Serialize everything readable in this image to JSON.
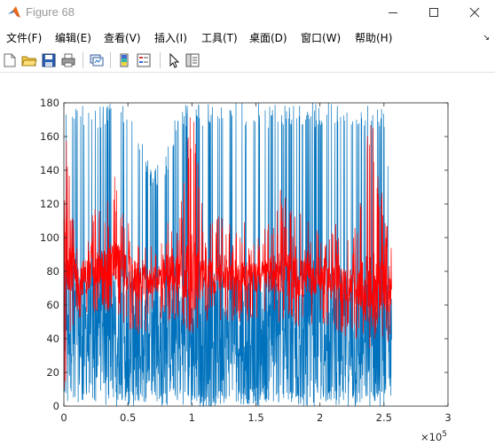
{
  "window": {
    "title": "Figure 68",
    "icons": {
      "app": "matlab-logo-icon",
      "minimize": "minimize-icon",
      "maximize": "maximize-icon",
      "close": "close-icon"
    }
  },
  "menu": {
    "items": [
      "文件(F)",
      "编辑(E)",
      "查看(V)",
      "插入(I)",
      "工具(T)",
      "桌面(D)",
      "窗口(W)",
      "帮助(H)"
    ],
    "overflow_icon": "chevron-right-icon"
  },
  "toolbar": {
    "buttons": [
      "new-figure-icon",
      "open-file-icon",
      "save-icon",
      "print-icon",
      "link-plot-icon",
      "insert-colorbar-icon",
      "insert-legend-icon",
      "edit-plot-icon",
      "property-inspector-icon"
    ]
  },
  "chart_data": {
    "type": "line",
    "title": "",
    "xlabel": "",
    "ylabel": "",
    "xlim": [
      0,
      300000
    ],
    "ylim": [
      0,
      180
    ],
    "x_ticks": [
      "0",
      "0.5",
      "1",
      "1.5",
      "2",
      "2.5",
      "3"
    ],
    "x_exponent_label": "×10",
    "x_exponent": "5",
    "y_ticks": [
      "0",
      "20",
      "40",
      "60",
      "80",
      "100",
      "120",
      "140",
      "160",
      "180"
    ],
    "x_data_end": 256000,
    "grid": false,
    "legend": "none",
    "series": [
      {
        "color": "#0072BD",
        "envelope_x": [
          0,
          5000,
          10000,
          20000,
          30000,
          40000,
          50000,
          60000,
          70000,
          80000,
          90000,
          100000,
          110000,
          120000,
          130000,
          140000,
          150000,
          160000,
          170000,
          180000,
          190000,
          200000,
          210000,
          220000,
          230000,
          240000,
          250000,
          256000
        ],
        "median": [
          60,
          50,
          42,
          45,
          50,
          48,
          40,
          35,
          38,
          40,
          42,
          40,
          38,
          40,
          45,
          42,
          40,
          42,
          45,
          40,
          38,
          40,
          42,
          38,
          35,
          40,
          38,
          40
        ],
        "range_low": [
          0,
          0,
          0,
          5,
          0,
          0,
          0,
          0,
          0,
          0,
          0,
          0,
          0,
          0,
          0,
          0,
          0,
          0,
          0,
          0,
          0,
          0,
          0,
          0,
          0,
          0,
          0,
          0
        ],
        "range_high": [
          180,
          180,
          180,
          180,
          180,
          180,
          180,
          160,
          140,
          150,
          180,
          180,
          180,
          180,
          180,
          180,
          180,
          180,
          180,
          180,
          180,
          180,
          180,
          180,
          180,
          180,
          180,
          120
        ]
      },
      {
        "color": "#FF0000",
        "envelope_x": [
          0,
          5000,
          10000,
          20000,
          30000,
          40000,
          50000,
          60000,
          70000,
          80000,
          90000,
          100000,
          110000,
          120000,
          130000,
          140000,
          150000,
          160000,
          170000,
          180000,
          190000,
          200000,
          210000,
          220000,
          230000,
          240000,
          250000,
          256000
        ],
        "median": [
          100,
          85,
          75,
          78,
          82,
          85,
          80,
          72,
          75,
          78,
          80,
          78,
          76,
          78,
          80,
          78,
          76,
          78,
          80,
          76,
          75,
          78,
          74,
          72,
          70,
          68,
          70,
          65
        ],
        "range_low": [
          0,
          40,
          50,
          55,
          55,
          55,
          45,
          40,
          50,
          50,
          50,
          40,
          50,
          50,
          50,
          50,
          50,
          50,
          50,
          45,
          45,
          50,
          45,
          40,
          40,
          30,
          40,
          35
        ],
        "range_high": [
          180,
          130,
          110,
          115,
          120,
          140,
          110,
          100,
          95,
          110,
          120,
          180,
          110,
          115,
          120,
          110,
          100,
          110,
          130,
          120,
          110,
          110,
          115,
          100,
          110,
          180,
          120,
          95
        ]
      }
    ]
  }
}
